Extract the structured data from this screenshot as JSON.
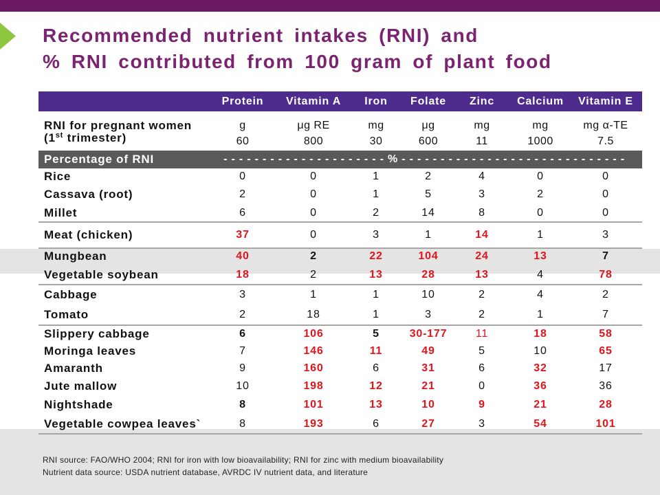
{
  "slide": {
    "title_line1": "Recommended nutrient intakes (RNI) and",
    "title_line2": "% RNI contributed from 100 gram of plant food",
    "colors": {
      "top_bar": "#6b1a62",
      "arrow": "#8dc63f",
      "title": "#7a2371",
      "header_bg": "#4e2c8d",
      "percent_row_bg": "#595959",
      "highlight": "#e3141b",
      "separator": "#a6a6a6",
      "band": "#e4e4e4"
    }
  },
  "table": {
    "columns": [
      "Protein",
      "Vitamin A",
      "Iron",
      "Folate",
      "Zinc",
      "Calcium",
      "Vitamin E"
    ],
    "rni": {
      "label_line1": "RNI for pregnant women",
      "label_line2_prefix": "(1",
      "label_line2_sup": "st",
      "label_line2_suffix": " trimester)",
      "units": [
        "g",
        "μg RE",
        "mg",
        "μg",
        "mg",
        "mg",
        "mg α-TE"
      ],
      "values": [
        "60",
        "800",
        "30",
        "600",
        "11",
        "1000",
        "7.5"
      ]
    },
    "percent_row": {
      "label": "Percentage of RNI",
      "scale_text": "- - - - - - - - - - - - - - - - - - - - - % - - - - - - - - - - - - - - - - - - - - - - - - - - - - -"
    },
    "groups": [
      [
        {
          "food": "Rice",
          "cells": [
            "0",
            "0",
            "1",
            "2",
            "4",
            "0",
            "0"
          ]
        },
        {
          "food": "Cassava (root)",
          "cells": [
            "2",
            "0",
            "1",
            "5",
            "3",
            "2",
            "0"
          ]
        },
        {
          "food": "Millet",
          "cells": [
            "6",
            "0",
            "2",
            "14",
            "8",
            "0",
            "0"
          ]
        }
      ],
      [
        {
          "food": "Meat (chicken)",
          "cells": [
            {
              "v": "37",
              "hl": true,
              "b": true
            },
            "0",
            "3",
            "1",
            {
              "v": "14",
              "hl": true,
              "b": true
            },
            "1",
            "3"
          ]
        }
      ],
      [
        {
          "food": "Mungbean",
          "cells": [
            {
              "v": "40",
              "hl": true,
              "b": true
            },
            {
              "v": "2",
              "b": true
            },
            {
              "v": "22",
              "hl": true,
              "b": true
            },
            {
              "v": "104",
              "hl": true,
              "b": true
            },
            {
              "v": "24",
              "hl": true,
              "b": true
            },
            {
              "v": "13",
              "hl": true,
              "b": true
            },
            {
              "v": "7",
              "b": true
            }
          ]
        },
        {
          "food": "Vegetable soybean",
          "cells": [
            {
              "v": "18",
              "hl": true,
              "b": true
            },
            "2",
            {
              "v": "13",
              "hl": true,
              "b": true
            },
            {
              "v": "28",
              "hl": true,
              "b": true
            },
            {
              "v": "13",
              "hl": true,
              "b": true
            },
            "4",
            {
              "v": "78",
              "hl": true,
              "b": true
            }
          ]
        }
      ],
      [
        {
          "food": "Cabbage",
          "cells": [
            "3",
            "1",
            "1",
            "10",
            "2",
            "4",
            "2"
          ]
        },
        {
          "food": "Tomato",
          "cells": [
            "2",
            "18",
            "1",
            "3",
            "2",
            "1",
            "7"
          ]
        }
      ],
      [
        {
          "food": "Slippery cabbage",
          "cells": [
            {
              "v": "6",
              "b": true
            },
            {
              "v": "106",
              "hl": true,
              "b": true
            },
            {
              "v": "5",
              "b": true
            },
            {
              "v": "30-177",
              "hl": true,
              "b": true
            },
            {
              "v": "11",
              "hl": true
            },
            {
              "v": "18",
              "hl": true,
              "b": true
            },
            {
              "v": "58",
              "hl": true,
              "b": true
            }
          ]
        },
        {
          "food": "Moringa leaves",
          "cells": [
            "7",
            {
              "v": "146",
              "hl": true,
              "b": true
            },
            {
              "v": "11",
              "hl": true,
              "b": true
            },
            {
              "v": "49",
              "hl": true,
              "b": true
            },
            "5",
            "10",
            {
              "v": "65",
              "hl": true,
              "b": true
            }
          ]
        },
        {
          "food": "Amaranth",
          "cells": [
            "9",
            {
              "v": "160",
              "hl": true,
              "b": true
            },
            "6",
            {
              "v": "31",
              "hl": true,
              "b": true
            },
            "6",
            {
              "v": "32",
              "hl": true,
              "b": true
            },
            "17"
          ]
        },
        {
          "food": "Jute mallow",
          "cells": [
            "10",
            {
              "v": "198",
              "hl": true,
              "b": true
            },
            {
              "v": "12",
              "hl": true,
              "b": true
            },
            {
              "v": "21",
              "hl": true,
              "b": true
            },
            "0",
            {
              "v": "36",
              "hl": true,
              "b": true
            },
            "36"
          ]
        },
        {
          "food": "Nightshade",
          "cells": [
            {
              "v": "8",
              "b": true
            },
            {
              "v": "101",
              "hl": true,
              "b": true
            },
            {
              "v": "13",
              "hl": true,
              "b": true
            },
            {
              "v": "10",
              "hl": true,
              "b": true
            },
            {
              "v": "9",
              "hl": true,
              "b": true
            },
            {
              "v": "21",
              "hl": true,
              "b": true
            },
            {
              "v": "28",
              "hl": true,
              "b": true
            }
          ]
        },
        {
          "food": "Vegetable cowpea leaves`",
          "cells": [
            "8",
            {
              "v": "193",
              "hl": true,
              "b": true
            },
            "6",
            {
              "v": "27",
              "hl": true,
              "b": true
            },
            "3",
            {
              "v": "54",
              "hl": true,
              "b": true
            },
            {
              "v": "101",
              "hl": true,
              "b": true
            }
          ]
        }
      ]
    ]
  },
  "footer": {
    "rni_source": "RNI source: FAO/WHO 2004; RNI for iron with low bioavailability; RNI for zinc with medium bioavailability",
    "data_source": "Nutrient data source: USDA nutrient database, AVRDC IV nutrient data, and literature"
  }
}
